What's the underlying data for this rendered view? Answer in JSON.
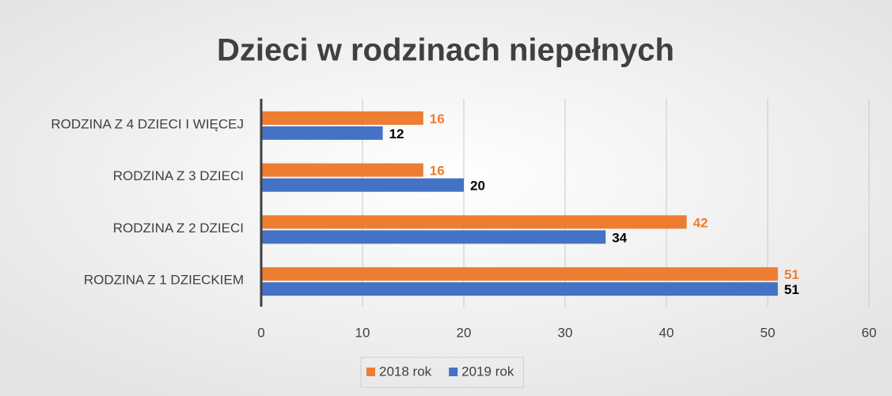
{
  "chart_data": {
    "type": "hbar",
    "title": "Dzieci w rodzinach niepełnych",
    "categories": [
      "RODZINA Z 4 DZIECI I WIĘCEJ",
      "RODZINA Z 3 DZIECI",
      "RODZINA Z 2 DZIECI",
      "RODZINA Z 1 DZIECKIEM"
    ],
    "series": [
      {
        "name": "2018 rok",
        "color": "#ed7d31",
        "label_color": "#ed7d31",
        "values": [
          16,
          16,
          42,
          51
        ]
      },
      {
        "name": "2019 rok",
        "color": "#4472c4",
        "label_color": "#000000",
        "values": [
          12,
          20,
          34,
          51
        ]
      }
    ],
    "xlim": [
      0,
      60
    ],
    "xticks": [
      0,
      10,
      20,
      30,
      40,
      50,
      60
    ],
    "grid": true,
    "legend": "bottom"
  }
}
